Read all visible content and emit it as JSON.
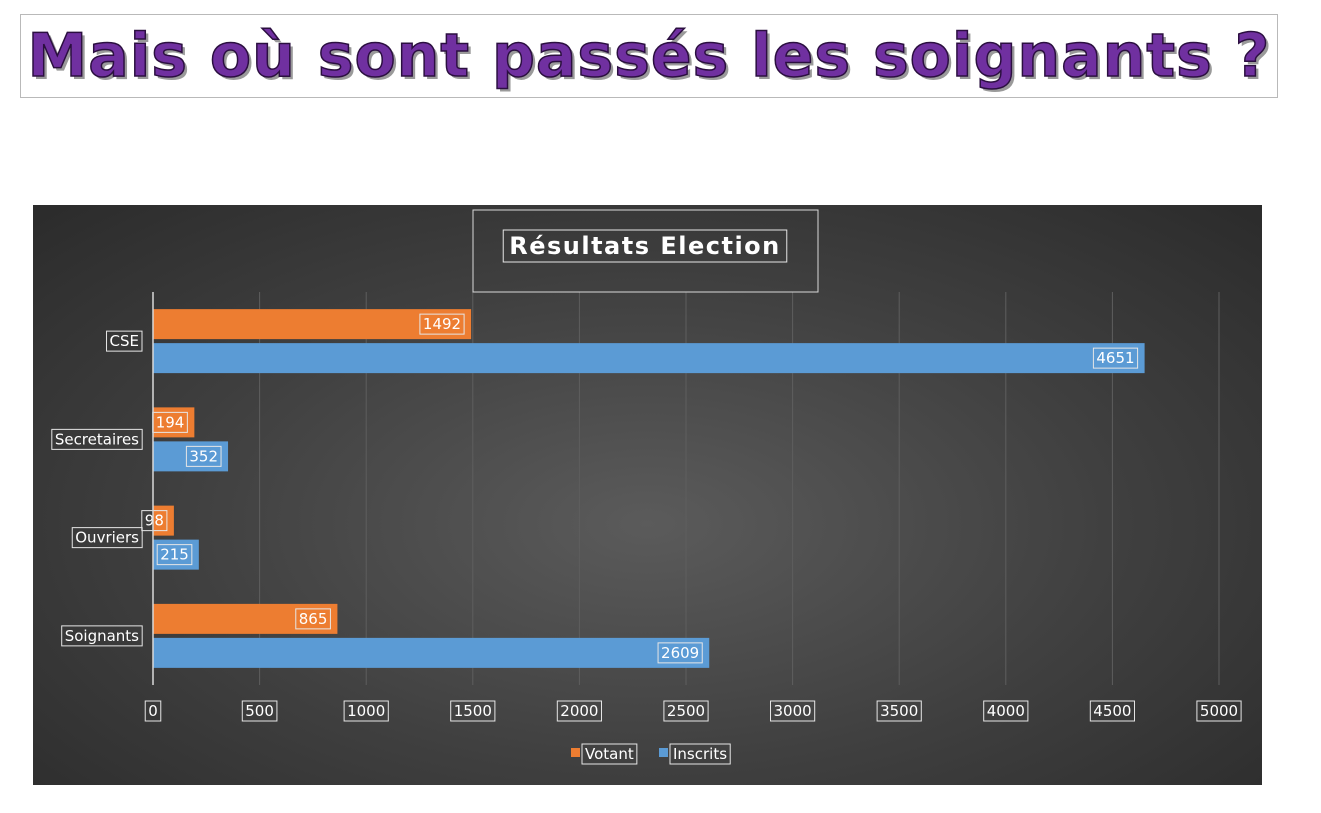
{
  "headline": "Mais où sont passés les soignants ?",
  "colors": {
    "headline": "#7030a0",
    "votant": "#ed7d31",
    "inscrits": "#5b9bd5",
    "grid": "#5e5e5e",
    "text": "#ffffff"
  },
  "chart_data": {
    "type": "bar",
    "orientation": "horizontal",
    "title": "Résultats Election",
    "categories": [
      "CSE",
      "Secretaires",
      "Ouvriers",
      "Soignants"
    ],
    "series": [
      {
        "name": "Votant",
        "values": [
          1492,
          194,
          98,
          865
        ]
      },
      {
        "name": "Inscrits",
        "values": [
          4651,
          352,
          215,
          2609
        ]
      }
    ],
    "x_ticks": [
      "0",
      "500",
      "1000",
      "1500",
      "2000",
      "2500",
      "3000",
      "3500",
      "4000",
      "4500",
      "5000"
    ],
    "xlim": [
      0,
      5000
    ],
    "grid": true,
    "legend": "bottom"
  }
}
